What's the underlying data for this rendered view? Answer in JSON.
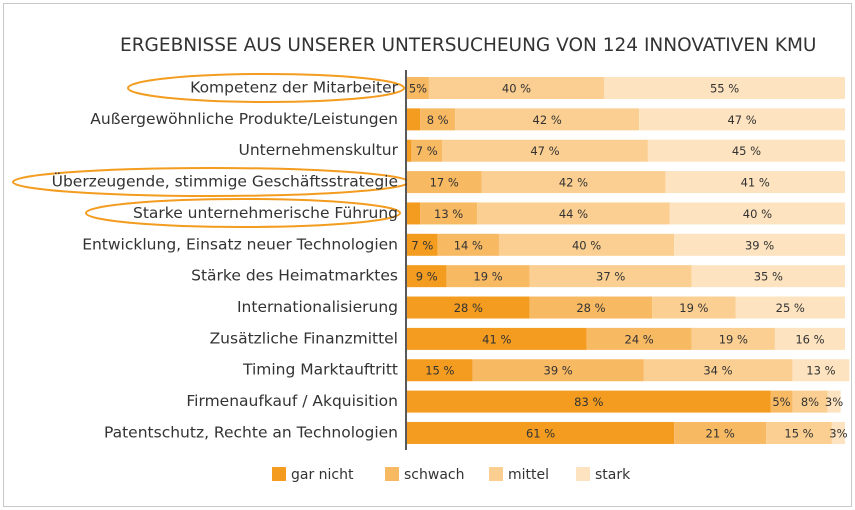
{
  "chart_data": {
    "type": "stacked-bar-horizontal",
    "title": "ERGEBNISSE AUS UNSERER UNTERSUCHEUNG VON 124 INNOVATIVEN KMU",
    "categories": [
      "Kompetenz der Mitarbeiter",
      "Außergewöhnliche Produkte/Leistungen",
      "Unternehmenskultur",
      "Überzeugende, stimmige Geschäftsstrategie",
      "Starke unternehmerische Führung",
      "Entwicklung, Einsatz neuer Technologien",
      "Stärke des Heimatmarktes",
      "Internationalisierung",
      "Zusätzliche Finanzmittel",
      "Timing Marktauftritt",
      "Firmenaufkauf / Akquisition",
      "Patentschutz, Rechte an Technologien"
    ],
    "series": [
      {
        "name": "gar nicht",
        "color": "#f39c1f",
        "values": [
          0,
          3,
          1,
          0,
          3,
          7,
          9,
          28,
          41,
          15,
          83,
          61
        ],
        "value_labels": [
          null,
          null,
          null,
          null,
          null,
          "7 %",
          "9 %",
          "28 %",
          "41 %",
          "15 %",
          "83 %",
          "61 %"
        ]
      },
      {
        "name": "schwach",
        "color": "#f8b963",
        "values": [
          5,
          8,
          7,
          17,
          13,
          14,
          19,
          28,
          24,
          39,
          5,
          21
        ],
        "value_labels": [
          "5%",
          "8 %",
          "7 %",
          "17 %",
          "13 %",
          "14 %",
          "19 %",
          "28 %",
          "24 %",
          "39 %",
          "5%",
          "21 %"
        ]
      },
      {
        "name": "mittel",
        "color": "#fbcf91",
        "values": [
          40,
          42,
          47,
          42,
          44,
          40,
          37,
          19,
          19,
          34,
          8,
          15
        ],
        "value_labels": [
          "40 %",
          "42 %",
          "47 %",
          "42 %",
          "44 %",
          "40 %",
          "37 %",
          "19 %",
          "19 %",
          "34 %",
          "8%",
          "15 %"
        ]
      },
      {
        "name": "stark",
        "color": "#fde3bf",
        "values": [
          55,
          47,
          45,
          41,
          40,
          39,
          35,
          25,
          16,
          13,
          3,
          3
        ],
        "value_labels": [
          "55 %",
          "47 %",
          "45 %",
          "41 %",
          "40 %",
          "39 %",
          "35 %",
          "25 %",
          "16 %",
          "13 %",
          "3%",
          "3%"
        ]
      }
    ]
  }
}
